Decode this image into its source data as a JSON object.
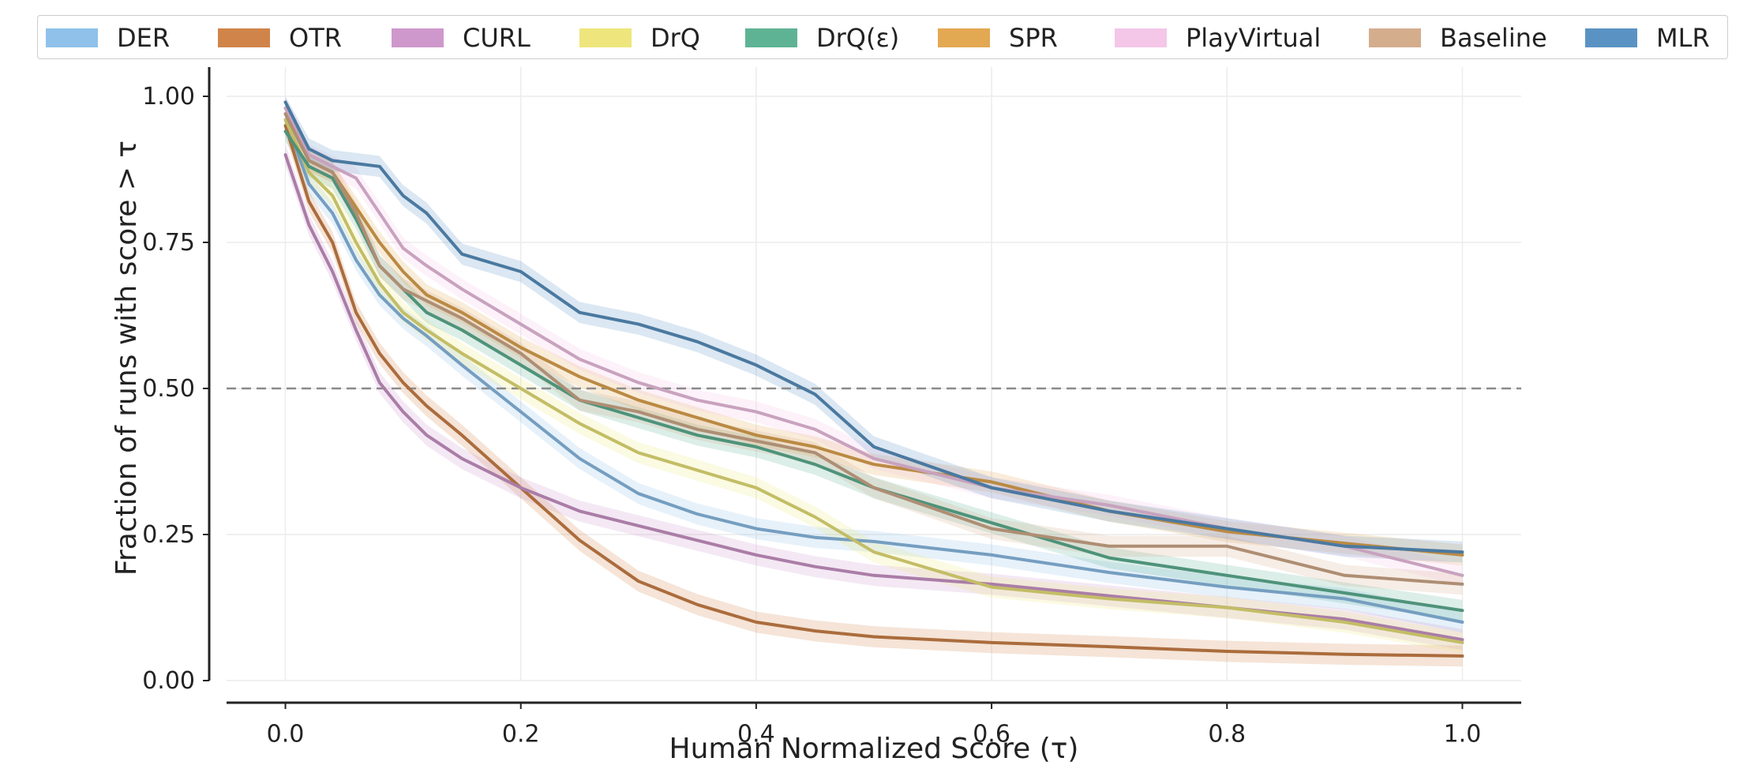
{
  "chart_data": {
    "type": "line",
    "title": "",
    "xlabel": "Human Normalized Score (τ)",
    "ylabel": "Fraction of runs with score > τ",
    "xlim": [
      -0.05,
      1.05
    ],
    "ylim": [
      0.0,
      1.05
    ],
    "xticks": [
      "0.0",
      "0.2",
      "0.4",
      "0.6",
      "0.8",
      "1.0"
    ],
    "yticks": [
      "0.00",
      "0.25",
      "0.50",
      "0.75",
      "1.00"
    ],
    "grid": true,
    "legend_position": "top",
    "reference_line": 0.5,
    "x": [
      0.0,
      0.02,
      0.04,
      0.06,
      0.08,
      0.1,
      0.12,
      0.15,
      0.2,
      0.25,
      0.3,
      0.35,
      0.4,
      0.45,
      0.5,
      0.6,
      0.7,
      0.8,
      0.9,
      1.0
    ],
    "series": [
      {
        "name": "DER",
        "color": "#8fc1ea",
        "values": [
          0.96,
          0.85,
          0.8,
          0.72,
          0.66,
          0.62,
          0.59,
          0.54,
          0.46,
          0.38,
          0.32,
          0.285,
          0.26,
          0.245,
          0.238,
          0.215,
          0.185,
          0.16,
          0.14,
          0.1
        ]
      },
      {
        "name": "OTR",
        "color": "#d0844a",
        "values": [
          0.95,
          0.82,
          0.75,
          0.63,
          0.56,
          0.51,
          0.47,
          0.42,
          0.33,
          0.24,
          0.17,
          0.13,
          0.1,
          0.085,
          0.075,
          0.065,
          0.058,
          0.05,
          0.045,
          0.042
        ]
      },
      {
        "name": "CURL",
        "color": "#cf98cc",
        "values": [
          0.9,
          0.78,
          0.7,
          0.6,
          0.51,
          0.46,
          0.42,
          0.38,
          0.33,
          0.29,
          0.265,
          0.24,
          0.215,
          0.195,
          0.18,
          0.165,
          0.145,
          0.125,
          0.105,
          0.07
        ]
      },
      {
        "name": "DrQ",
        "color": "#eee67c",
        "values": [
          0.96,
          0.87,
          0.83,
          0.75,
          0.68,
          0.63,
          0.6,
          0.56,
          0.5,
          0.44,
          0.39,
          0.36,
          0.33,
          0.28,
          0.22,
          0.16,
          0.14,
          0.125,
          0.1,
          0.065
        ]
      },
      {
        "name": "DrQ(ε)",
        "color": "#5fb395",
        "values": [
          0.94,
          0.88,
          0.86,
          0.79,
          0.71,
          0.67,
          0.63,
          0.6,
          0.54,
          0.48,
          0.45,
          0.42,
          0.4,
          0.37,
          0.33,
          0.27,
          0.21,
          0.18,
          0.15,
          0.12
        ]
      },
      {
        "name": "SPR",
        "color": "#e3a852",
        "values": [
          0.97,
          0.89,
          0.87,
          0.81,
          0.75,
          0.7,
          0.66,
          0.63,
          0.57,
          0.52,
          0.48,
          0.45,
          0.42,
          0.4,
          0.37,
          0.34,
          0.29,
          0.255,
          0.235,
          0.215
        ]
      },
      {
        "name": "PlayVirtual",
        "color": "#f4c6e8",
        "values": [
          0.98,
          0.9,
          0.88,
          0.86,
          0.8,
          0.74,
          0.71,
          0.67,
          0.61,
          0.55,
          0.51,
          0.48,
          0.46,
          0.43,
          0.38,
          0.33,
          0.3,
          0.26,
          0.23,
          0.18
        ]
      },
      {
        "name": "Baseline",
        "color": "#d4ad8d",
        "values": [
          0.97,
          0.89,
          0.87,
          0.8,
          0.71,
          0.67,
          0.65,
          0.62,
          0.56,
          0.48,
          0.46,
          0.43,
          0.41,
          0.39,
          0.33,
          0.26,
          0.23,
          0.23,
          0.18,
          0.165
        ]
      },
      {
        "name": "MLR",
        "color": "#5a93c3",
        "values": [
          0.99,
          0.91,
          0.89,
          0.885,
          0.88,
          0.83,
          0.8,
          0.73,
          0.7,
          0.63,
          0.61,
          0.58,
          0.54,
          0.49,
          0.4,
          0.33,
          0.29,
          0.26,
          0.23,
          0.22
        ]
      }
    ]
  }
}
